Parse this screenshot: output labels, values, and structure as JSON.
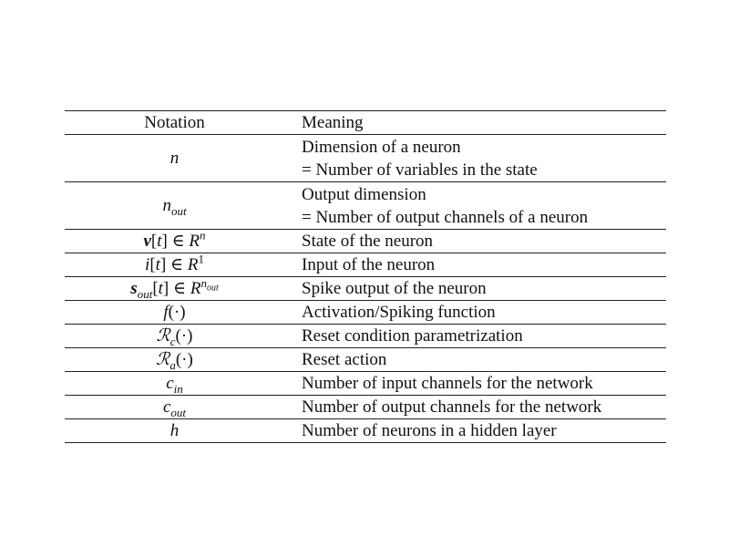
{
  "table": {
    "header": {
      "notation": "Notation",
      "meaning": "Meaning"
    },
    "rows": [
      {
        "notation": "n",
        "meaning_lines": [
          "Dimension of a neuron",
          "= Number of variables in the state"
        ]
      },
      {
        "notation": "n_out",
        "meaning_lines": [
          "Output dimension",
          "= Number of output channels of a neuron"
        ]
      },
      {
        "notation": "v[t] ∈ R^n",
        "meaning_lines": [
          "State of the neuron"
        ]
      },
      {
        "notation": "i[t] ∈ R^1",
        "meaning_lines": [
          "Input of the neuron"
        ]
      },
      {
        "notation": "s_out[t] ∈ R^{n_out}",
        "meaning_lines": [
          "Spike output of the neuron"
        ]
      },
      {
        "notation": "f(·)",
        "meaning_lines": [
          "Activation/Spiking function"
        ]
      },
      {
        "notation": "R_c(·)",
        "meaning_lines": [
          "Reset condition parametrization"
        ]
      },
      {
        "notation": "R_a(·)",
        "meaning_lines": [
          "Reset action"
        ]
      },
      {
        "notation": "c_in",
        "meaning_lines": [
          "Number of input channels for the network"
        ]
      },
      {
        "notation": "c_out",
        "meaning_lines": [
          "Number of output channels for the network"
        ]
      },
      {
        "notation": "h",
        "meaning_lines": [
          "Number of neurons in a hidden layer"
        ]
      }
    ]
  }
}
